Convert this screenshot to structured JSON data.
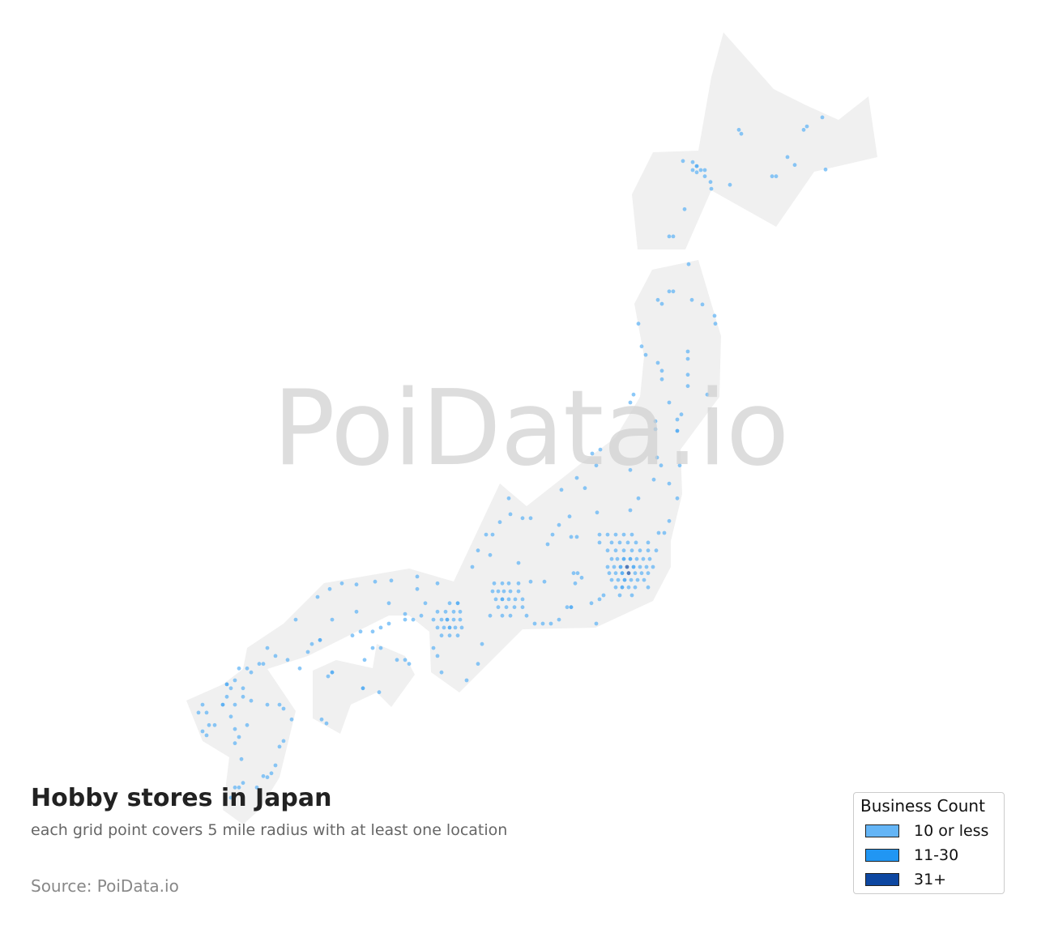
{
  "watermark": "PoiData.io",
  "title": "Hobby stores in Japan",
  "subtitle": "each grid point covers 5 mile radius with at least one location",
  "source": "Source: PoiData.io",
  "legend": {
    "title": "Business Count",
    "items": [
      {
        "label": "10 or less",
        "color": "#64b5f6"
      },
      {
        "label": "11-30",
        "color": "#2196f3"
      },
      {
        "label": "31+",
        "color": "#0d47a1"
      }
    ]
  },
  "colors": {
    "land": "#f0f0f0",
    "tier1": "#64b5f6",
    "tier2": "#2196f3",
    "tier3": "#0d47a1"
  },
  "points_lon_lat_tier": [
    [
      143.24,
      43.71,
      1
    ],
    [
      143.3,
      43.64,
      1
    ],
    [
      144.84,
      43.71,
      1
    ],
    [
      144.92,
      43.77,
      1
    ],
    [
      145.3,
      43.93,
      1
    ],
    [
      144.44,
      43.23,
      1
    ],
    [
      144.62,
      43.09,
      1
    ],
    [
      144.06,
      42.89,
      1
    ],
    [
      144.16,
      42.89,
      1
    ],
    [
      145.38,
      43.01,
      1
    ],
    [
      143.02,
      42.74,
      1
    ],
    [
      141.86,
      43.16,
      1
    ],
    [
      142.1,
      43.14,
      1
    ],
    [
      142.2,
      43.07,
      2
    ],
    [
      142.3,
      43.0,
      1
    ],
    [
      142.4,
      43.0,
      1
    ],
    [
      142.1,
      43.0,
      1
    ],
    [
      142.2,
      42.96,
      1
    ],
    [
      142.4,
      42.89,
      1
    ],
    [
      142.54,
      42.79,
      1
    ],
    [
      142.56,
      42.67,
      1
    ],
    [
      141.9,
      42.31,
      1
    ],
    [
      141.52,
      41.83,
      1
    ],
    [
      141.62,
      41.83,
      1
    ],
    [
      142.0,
      41.34,
      1
    ],
    [
      141.52,
      40.86,
      1
    ],
    [
      141.62,
      40.86,
      1
    ],
    [
      141.24,
      40.71,
      1
    ],
    [
      141.34,
      40.64,
      1
    ],
    [
      142.08,
      40.71,
      1
    ],
    [
      142.34,
      40.63,
      1
    ],
    [
      142.64,
      40.43,
      1
    ],
    [
      142.66,
      40.29,
      1
    ],
    [
      140.76,
      40.29,
      1
    ],
    [
      140.84,
      39.89,
      1
    ],
    [
      140.94,
      39.74,
      1
    ],
    [
      141.98,
      39.8,
      1
    ],
    [
      141.98,
      39.67,
      1
    ],
    [
      141.24,
      39.6,
      1
    ],
    [
      141.34,
      39.46,
      1
    ],
    [
      141.34,
      39.31,
      1
    ],
    [
      141.98,
      39.39,
      1
    ],
    [
      141.98,
      39.19,
      1
    ],
    [
      142.46,
      39.04,
      1
    ],
    [
      140.64,
      39.04,
      1
    ],
    [
      140.56,
      38.9,
      1
    ],
    [
      141.52,
      38.9,
      1
    ],
    [
      141.82,
      38.69,
      1
    ],
    [
      141.72,
      38.6,
      1
    ],
    [
      141.18,
      38.57,
      1
    ],
    [
      141.18,
      38.43,
      1
    ],
    [
      141.72,
      38.4,
      2
    ],
    [
      139.62,
      38.0,
      1
    ],
    [
      139.82,
      38.07,
      1
    ],
    [
      139.72,
      37.79,
      1
    ],
    [
      141.22,
      37.93,
      1
    ],
    [
      141.32,
      37.79,
      1
    ],
    [
      141.78,
      37.79,
      1
    ],
    [
      140.56,
      37.71,
      1
    ],
    [
      141.14,
      37.54,
      1
    ],
    [
      141.52,
      37.47,
      1
    ],
    [
      141.72,
      37.21,
      1
    ],
    [
      140.76,
      37.21,
      1
    ],
    [
      140.56,
      37.0,
      1
    ],
    [
      141.52,
      36.81,
      1
    ],
    [
      141.26,
      36.6,
      1
    ],
    [
      141.4,
      36.6,
      1
    ],
    [
      139.24,
      37.57,
      1
    ],
    [
      139.44,
      37.39,
      1
    ],
    [
      138.86,
      37.36,
      1
    ],
    [
      139.8,
      36.57,
      1
    ],
    [
      140.0,
      36.57,
      1
    ],
    [
      140.2,
      36.57,
      1
    ],
    [
      140.4,
      36.57,
      1
    ],
    [
      140.6,
      36.57,
      1
    ],
    [
      139.8,
      36.43,
      1
    ],
    [
      140.1,
      36.43,
      1
    ],
    [
      140.3,
      36.43,
      1
    ],
    [
      140.5,
      36.43,
      1
    ],
    [
      140.7,
      36.43,
      1
    ],
    [
      141.0,
      36.43,
      1
    ],
    [
      140.0,
      36.29,
      1
    ],
    [
      140.2,
      36.29,
      1
    ],
    [
      140.4,
      36.29,
      1
    ],
    [
      140.6,
      36.29,
      1
    ],
    [
      140.8,
      36.29,
      1
    ],
    [
      141.0,
      36.29,
      1
    ],
    [
      141.2,
      36.29,
      1
    ],
    [
      140.1,
      36.14,
      1
    ],
    [
      140.24,
      36.14,
      1
    ],
    [
      140.4,
      36.14,
      2
    ],
    [
      140.56,
      36.14,
      2
    ],
    [
      140.72,
      36.14,
      1
    ],
    [
      140.88,
      36.14,
      1
    ],
    [
      141.04,
      36.14,
      1
    ],
    [
      140.0,
      36.0,
      1
    ],
    [
      140.16,
      36.0,
      1
    ],
    [
      140.32,
      36.0,
      2
    ],
    [
      140.48,
      36.0,
      3
    ],
    [
      140.64,
      36.0,
      2
    ],
    [
      140.8,
      36.0,
      1
    ],
    [
      140.96,
      36.0,
      1
    ],
    [
      141.12,
      36.0,
      1
    ],
    [
      140.04,
      35.89,
      1
    ],
    [
      140.2,
      35.89,
      1
    ],
    [
      140.36,
      35.89,
      2
    ],
    [
      140.52,
      35.89,
      3
    ],
    [
      140.68,
      35.89,
      1
    ],
    [
      140.84,
      35.89,
      1
    ],
    [
      141.0,
      35.89,
      1
    ],
    [
      140.1,
      35.77,
      1
    ],
    [
      140.26,
      35.77,
      1
    ],
    [
      140.42,
      35.77,
      2
    ],
    [
      140.58,
      35.77,
      1
    ],
    [
      140.74,
      35.77,
      1
    ],
    [
      140.9,
      35.77,
      1
    ],
    [
      140.2,
      35.64,
      1
    ],
    [
      140.36,
      35.64,
      2
    ],
    [
      140.52,
      35.64,
      1
    ],
    [
      140.68,
      35.64,
      1
    ],
    [
      141.0,
      35.64,
      1
    ],
    [
      139.9,
      35.5,
      1
    ],
    [
      140.3,
      35.5,
      1
    ],
    [
      140.6,
      35.5,
      1
    ],
    [
      139.1,
      36.53,
      1
    ],
    [
      139.24,
      36.53,
      1
    ],
    [
      138.8,
      36.74,
      1
    ],
    [
      139.06,
      36.89,
      1
    ],
    [
      139.74,
      36.96,
      1
    ],
    [
      138.64,
      36.57,
      1
    ],
    [
      138.52,
      36.4,
      1
    ],
    [
      139.16,
      35.89,
      1
    ],
    [
      139.26,
      35.89,
      1
    ],
    [
      139.36,
      35.81,
      1
    ],
    [
      139.2,
      35.71,
      1
    ],
    [
      139.1,
      35.29,
      2
    ],
    [
      139.0,
      35.29,
      1
    ],
    [
      139.6,
      35.36,
      1
    ],
    [
      139.8,
      35.43,
      1
    ],
    [
      139.72,
      35.0,
      1
    ],
    [
      138.2,
      35.0,
      1
    ],
    [
      138.4,
      35.0,
      1
    ],
    [
      138.6,
      35.0,
      1
    ],
    [
      138.8,
      35.07,
      1
    ],
    [
      137.8,
      35.71,
      1
    ],
    [
      138.1,
      35.74,
      1
    ],
    [
      138.44,
      35.74,
      1
    ],
    [
      138.1,
      36.86,
      1
    ],
    [
      137.8,
      36.07,
      1
    ],
    [
      137.56,
      37.21,
      1
    ],
    [
      137.6,
      36.93,
      1
    ],
    [
      137.9,
      36.86,
      1
    ],
    [
      137.34,
      36.79,
      1
    ],
    [
      137.16,
      36.57,
      1
    ],
    [
      137.0,
      36.57,
      1
    ],
    [
      136.8,
      36.29,
      1
    ],
    [
      137.1,
      36.21,
      1
    ],
    [
      136.66,
      36.0,
      1
    ],
    [
      137.2,
      35.71,
      1
    ],
    [
      137.4,
      35.71,
      1
    ],
    [
      137.56,
      35.71,
      1
    ],
    [
      137.16,
      35.57,
      1
    ],
    [
      137.3,
      35.57,
      1
    ],
    [
      137.44,
      35.57,
      1
    ],
    [
      137.6,
      35.57,
      1
    ],
    [
      137.8,
      35.57,
      1
    ],
    [
      137.24,
      35.43,
      1
    ],
    [
      137.4,
      35.43,
      2
    ],
    [
      137.56,
      35.43,
      1
    ],
    [
      137.72,
      35.43,
      1
    ],
    [
      137.9,
      35.43,
      1
    ],
    [
      137.3,
      35.29,
      1
    ],
    [
      137.5,
      35.29,
      1
    ],
    [
      137.7,
      35.29,
      1
    ],
    [
      137.9,
      35.29,
      1
    ],
    [
      137.1,
      35.14,
      1
    ],
    [
      137.4,
      35.14,
      1
    ],
    [
      137.6,
      35.14,
      1
    ],
    [
      138.0,
      35.14,
      1
    ],
    [
      136.1,
      35.36,
      1
    ],
    [
      136.3,
      35.36,
      2
    ],
    [
      135.8,
      35.21,
      1
    ],
    [
      136.0,
      35.21,
      1
    ],
    [
      136.2,
      35.21,
      1
    ],
    [
      136.36,
      35.21,
      1
    ],
    [
      135.7,
      35.07,
      1
    ],
    [
      135.9,
      35.07,
      1
    ],
    [
      136.04,
      35.07,
      2
    ],
    [
      136.2,
      35.07,
      1
    ],
    [
      136.36,
      35.07,
      1
    ],
    [
      135.8,
      34.93,
      1
    ],
    [
      135.96,
      34.93,
      1
    ],
    [
      136.1,
      34.93,
      2
    ],
    [
      136.24,
      34.93,
      1
    ],
    [
      136.4,
      34.93,
      1
    ],
    [
      135.9,
      34.79,
      1
    ],
    [
      136.1,
      34.79,
      1
    ],
    [
      136.3,
      34.79,
      1
    ],
    [
      135.3,
      35.83,
      1
    ],
    [
      135.8,
      35.71,
      1
    ],
    [
      135.3,
      35.61,
      1
    ],
    [
      134.66,
      35.76,
      1
    ],
    [
      134.26,
      35.74,
      1
    ],
    [
      133.8,
      35.69,
      1
    ],
    [
      133.44,
      35.71,
      1
    ],
    [
      133.14,
      35.61,
      1
    ],
    [
      132.84,
      35.47,
      1
    ],
    [
      135.5,
      35.36,
      1
    ],
    [
      135.4,
      35.14,
      1
    ],
    [
      135.0,
      35.07,
      1
    ],
    [
      134.6,
      35.0,
      1
    ],
    [
      134.4,
      34.93,
      1
    ],
    [
      134.2,
      34.86,
      1
    ],
    [
      133.9,
      34.86,
      1
    ],
    [
      133.7,
      34.79,
      1
    ],
    [
      133.2,
      35.07,
      1
    ],
    [
      132.9,
      34.71,
      2
    ],
    [
      132.7,
      34.64,
      1
    ],
    [
      132.6,
      34.5,
      1
    ],
    [
      132.3,
      35.07,
      1
    ],
    [
      133.8,
      35.21,
      1
    ],
    [
      134.6,
      35.36,
      1
    ],
    [
      135.0,
      35.17,
      1
    ],
    [
      135.2,
      35.07,
      1
    ],
    [
      134.0,
      34.36,
      1
    ],
    [
      134.2,
      34.57,
      1
    ],
    [
      134.4,
      34.57,
      1
    ],
    [
      134.8,
      34.36,
      1
    ],
    [
      135.0,
      34.36,
      1
    ],
    [
      133.2,
      34.14,
      2
    ],
    [
      133.1,
      34.07,
      1
    ],
    [
      133.96,
      33.86,
      2
    ],
    [
      134.36,
      33.79,
      1
    ],
    [
      132.94,
      33.31,
      1
    ],
    [
      133.06,
      33.24,
      1
    ],
    [
      135.1,
      34.29,
      1
    ],
    [
      135.7,
      34.57,
      1
    ],
    [
      135.8,
      34.43,
      1
    ],
    [
      135.9,
      34.14,
      1
    ],
    [
      136.8,
      34.29,
      1
    ],
    [
      136.9,
      34.64,
      1
    ],
    [
      136.52,
      34.0,
      1
    ],
    [
      130.6,
      33.93,
      2
    ],
    [
      130.7,
      33.86,
      1
    ],
    [
      130.8,
      34.0,
      1
    ],
    [
      130.6,
      33.71,
      1
    ],
    [
      130.8,
      33.57,
      1
    ],
    [
      130.5,
      33.57,
      2
    ],
    [
      130.9,
      34.21,
      1
    ],
    [
      131.1,
      34.21,
      1
    ],
    [
      131.2,
      34.14,
      1
    ],
    [
      131.0,
      33.86,
      1
    ],
    [
      131.0,
      33.71,
      1
    ],
    [
      130.0,
      33.57,
      1
    ],
    [
      130.1,
      33.43,
      1
    ],
    [
      129.9,
      33.43,
      1
    ],
    [
      130.3,
      33.21,
      1
    ],
    [
      130.16,
      33.21,
      1
    ],
    [
      130.0,
      33.1,
      1
    ],
    [
      130.1,
      33.03,
      1
    ],
    [
      130.7,
      33.36,
      1
    ],
    [
      131.2,
      33.64,
      1
    ],
    [
      130.8,
      33.14,
      1
    ],
    [
      131.1,
      33.21,
      1
    ],
    [
      130.9,
      33.0,
      1
    ],
    [
      131.6,
      33.57,
      1
    ],
    [
      131.9,
      33.57,
      1
    ],
    [
      132.0,
      33.5,
      1
    ],
    [
      132.2,
      33.31,
      1
    ],
    [
      132.0,
      32.93,
      1
    ],
    [
      131.9,
      32.83,
      1
    ],
    [
      131.8,
      32.5,
      1
    ],
    [
      131.7,
      32.36,
      1
    ],
    [
      131.6,
      32.29,
      1
    ],
    [
      131.5,
      32.31,
      1
    ],
    [
      130.96,
      32.61,
      1
    ],
    [
      130.8,
      32.89,
      1
    ],
    [
      131.0,
      32.19,
      1
    ],
    [
      130.9,
      32.11,
      1
    ],
    [
      130.8,
      32.11,
      1
    ],
    [
      131.34,
      32.11,
      1
    ],
    [
      130.7,
      31.93,
      1
    ],
    [
      131.4,
      34.29,
      1
    ],
    [
      131.5,
      34.29,
      1
    ],
    [
      131.8,
      34.43,
      1
    ],
    [
      132.1,
      34.36,
      1
    ],
    [
      132.4,
      34.21,
      1
    ],
    [
      131.6,
      34.57,
      1
    ]
  ]
}
